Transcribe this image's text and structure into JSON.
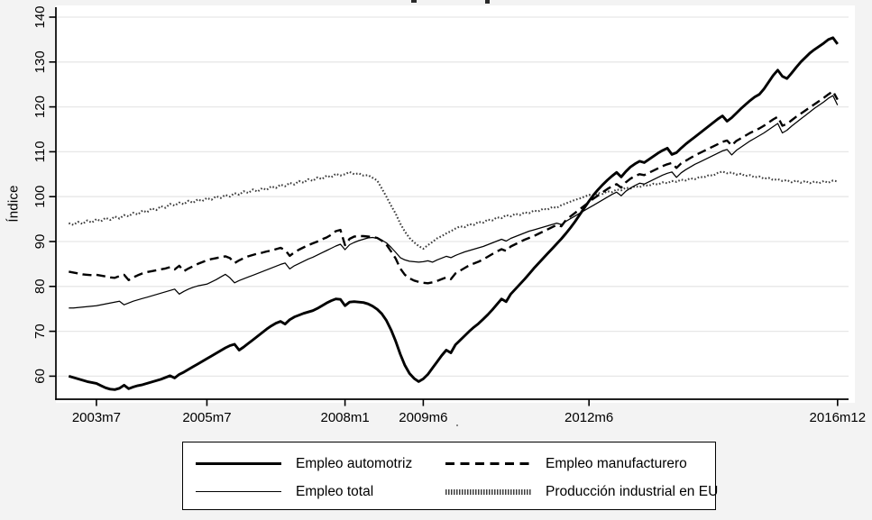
{
  "figure": {
    "y_axis_title": "Índice",
    "background": "#f3f3f3",
    "plot_background": "#ffffff",
    "grid_color": "#e7e7e7",
    "axis_color": "#000000",
    "y_ticks": [
      60,
      70,
      80,
      90,
      100,
      110,
      120,
      130,
      140
    ],
    "x_ticks": [
      {
        "label": "2003m7",
        "month_index": 6
      },
      {
        "label": "2005m7",
        "month_index": 30
      },
      {
        "label": "2008m1",
        "month_index": 60
      },
      {
        "label": "2009m6",
        "month_index": 77
      },
      {
        "label": "2012m6",
        "month_index": 113
      },
      {
        "label": "2016m12",
        "month_index": 167
      }
    ]
  },
  "chart_data": {
    "type": "line",
    "title": "",
    "xlabel": "",
    "ylabel": "Índice",
    "ylim": [
      55,
      142
    ],
    "x_start": "2003m1",
    "x_end": "2016m12",
    "x_frequency": "monthly",
    "grid": true,
    "legend_position": "bottom-box",
    "series": [
      {
        "name": "Empleo automotriz",
        "style": "solid-thick",
        "color": "#000000",
        "values": [
          60.0,
          59.7,
          59.4,
          59.1,
          58.8,
          58.6,
          58.4,
          57.9,
          57.4,
          57.1,
          57.0,
          57.3,
          58.0,
          57.2,
          57.6,
          57.9,
          58.1,
          58.4,
          58.7,
          59.0,
          59.3,
          59.7,
          60.1,
          59.6,
          60.4,
          60.9,
          61.5,
          62.1,
          62.7,
          63.3,
          63.9,
          64.5,
          65.1,
          65.7,
          66.3,
          66.8,
          67.1,
          65.8,
          66.5,
          67.3,
          68.1,
          68.9,
          69.7,
          70.5,
          71.2,
          71.8,
          72.2,
          71.6,
          72.6,
          73.2,
          73.6,
          74.0,
          74.3,
          74.6,
          75.1,
          75.7,
          76.3,
          76.8,
          77.2,
          77.1,
          75.7,
          76.5,
          76.6,
          76.5,
          76.4,
          76.1,
          75.6,
          74.9,
          73.9,
          72.4,
          70.3,
          67.8,
          64.9,
          62.4,
          60.6,
          59.5,
          58.8,
          59.4,
          60.4,
          61.8,
          63.2,
          64.6,
          65.8,
          65.2,
          67.0,
          68.0,
          69.0,
          70.0,
          70.9,
          71.7,
          72.7,
          73.7,
          74.8,
          76.0,
          77.2,
          76.6,
          78.3,
          79.4,
          80.5,
          81.6,
          82.8,
          84.0,
          85.1,
          86.2,
          87.3,
          88.4,
          89.5,
          90.6,
          91.8,
          93.1,
          94.5,
          96.0,
          97.5,
          99.0,
          100.4,
          101.6,
          102.7,
          103.7,
          104.6,
          105.4,
          104.4,
          105.6,
          106.6,
          107.3,
          107.9,
          107.6,
          108.3,
          109.0,
          109.7,
          110.3,
          110.8,
          109.4,
          109.8,
          110.8,
          111.7,
          112.5,
          113.3,
          114.1,
          114.9,
          115.7,
          116.5,
          117.3,
          118.0,
          116.8,
          117.6,
          118.6,
          119.6,
          120.5,
          121.4,
          122.2,
          122.8,
          124.0,
          125.5,
          127.0,
          128.2,
          126.8,
          126.3,
          127.5,
          128.8,
          130.0,
          131.0,
          132.0,
          132.8,
          133.5,
          134.2,
          135.0,
          135.4,
          134.0
        ]
      },
      {
        "name": "Empleo manufacturero",
        "style": "dashed",
        "color": "#000000",
        "values": [
          83.3,
          83.1,
          82.9,
          82.7,
          82.6,
          82.5,
          82.6,
          82.4,
          82.2,
          82.0,
          81.9,
          82.3,
          82.6,
          81.4,
          82.0,
          82.5,
          82.9,
          83.2,
          83.4,
          83.6,
          83.8,
          84.0,
          84.3,
          83.8,
          84.6,
          83.4,
          84.0,
          84.5,
          85.0,
          85.4,
          85.8,
          86.1,
          86.3,
          86.5,
          86.7,
          86.3,
          85.2,
          85.8,
          86.3,
          86.7,
          87.0,
          87.3,
          87.5,
          87.8,
          88.0,
          88.3,
          88.6,
          88.1,
          86.8,
          87.6,
          88.2,
          88.7,
          89.2,
          89.6,
          90.0,
          90.5,
          90.9,
          91.5,
          92.3,
          92.6,
          89.2,
          90.6,
          91.1,
          91.2,
          91.2,
          91.1,
          91.0,
          90.8,
          90.2,
          89.3,
          87.8,
          86.2,
          84.0,
          82.6,
          81.8,
          81.3,
          81.0,
          80.8,
          80.7,
          80.9,
          81.2,
          81.6,
          82.0,
          81.6,
          82.9,
          83.5,
          84.1,
          84.7,
          85.1,
          85.5,
          86.0,
          86.6,
          87.2,
          87.8,
          88.3,
          87.9,
          88.9,
          89.4,
          89.9,
          90.4,
          90.8,
          91.2,
          91.7,
          92.2,
          92.7,
          93.2,
          93.7,
          93.4,
          94.8,
          95.6,
          96.4,
          97.2,
          98.0,
          98.8,
          99.6,
          100.3,
          101.0,
          101.7,
          102.3,
          102.8,
          102.0,
          103.2,
          104.0,
          104.6,
          105.0,
          104.8,
          105.3,
          105.8,
          106.3,
          106.8,
          107.2,
          107.5,
          106.4,
          107.4,
          108.0,
          108.6,
          109.2,
          109.7,
          110.2,
          110.7,
          111.2,
          111.7,
          112.2,
          112.5,
          111.4,
          112.4,
          113.0,
          113.6,
          114.2,
          114.7,
          115.2,
          115.8,
          116.5,
          117.2,
          117.8,
          115.8,
          116.2,
          117.0,
          117.8,
          118.5,
          119.2,
          119.9,
          120.6,
          121.3,
          122.0,
          122.8,
          123.5,
          121.6
        ]
      },
      {
        "name": "Empleo total",
        "style": "solid-thin",
        "color": "#000000",
        "values": [
          75.2,
          75.2,
          75.3,
          75.4,
          75.5,
          75.6,
          75.7,
          75.9,
          76.1,
          76.3,
          76.5,
          76.7,
          75.9,
          76.3,
          76.7,
          77.0,
          77.3,
          77.6,
          77.9,
          78.2,
          78.5,
          78.8,
          79.1,
          79.4,
          78.3,
          78.9,
          79.4,
          79.8,
          80.1,
          80.3,
          80.5,
          81.0,
          81.5,
          82.1,
          82.7,
          81.9,
          80.8,
          81.3,
          81.7,
          82.1,
          82.5,
          82.9,
          83.3,
          83.7,
          84.1,
          84.5,
          84.9,
          85.2,
          83.9,
          84.6,
          85.1,
          85.6,
          86.1,
          86.5,
          87.0,
          87.5,
          88.0,
          88.5,
          89.0,
          89.4,
          88.2,
          89.3,
          89.8,
          90.2,
          90.5,
          90.8,
          90.9,
          90.7,
          90.3,
          89.7,
          88.7,
          87.6,
          86.4,
          85.9,
          85.6,
          85.5,
          85.4,
          85.5,
          85.7,
          85.4,
          85.9,
          86.3,
          86.7,
          86.4,
          86.9,
          87.3,
          87.7,
          88.0,
          88.3,
          88.6,
          88.9,
          89.3,
          89.7,
          90.1,
          90.5,
          90.1,
          90.7,
          91.1,
          91.5,
          91.9,
          92.3,
          92.6,
          92.9,
          93.2,
          93.5,
          93.8,
          94.1,
          93.8,
          94.5,
          95.1,
          95.7,
          96.3,
          96.9,
          97.5,
          98.1,
          98.7,
          99.3,
          99.9,
          100.5,
          101.0,
          100.2,
          101.2,
          101.9,
          102.5,
          103.0,
          102.8,
          103.3,
          103.8,
          104.3,
          104.8,
          105.2,
          105.5,
          104.3,
          105.3,
          106.0,
          106.6,
          107.2,
          107.7,
          108.2,
          108.7,
          109.2,
          109.7,
          110.2,
          110.5,
          109.3,
          110.3,
          111.0,
          111.7,
          112.4,
          113.0,
          113.6,
          114.2,
          114.9,
          115.6,
          116.3,
          114.2,
          114.8,
          115.7,
          116.5,
          117.3,
          118.1,
          118.9,
          119.7,
          120.4,
          121.1,
          121.9,
          122.5,
          120.4
        ]
      },
      {
        "name": "Producción industrial en EU",
        "style": "dotted",
        "color": "#3d3d3d",
        "values": [
          94.1,
          93.7,
          94.4,
          93.9,
          94.7,
          94.2,
          95.0,
          94.5,
          95.3,
          94.8,
          95.6,
          95.1,
          95.9,
          95.6,
          96.4,
          96.0,
          96.9,
          96.5,
          97.4,
          97.0,
          97.9,
          97.5,
          98.4,
          98.0,
          98.7,
          98.3,
          99.1,
          98.6,
          99.4,
          99.0,
          99.7,
          99.3,
          100.1,
          99.7,
          100.4,
          100.0,
          100.8,
          100.4,
          101.2,
          100.8,
          101.6,
          101.1,
          101.9,
          101.5,
          102.3,
          101.9,
          102.7,
          102.3,
          103.1,
          102.7,
          103.5,
          103.1,
          103.9,
          103.5,
          104.3,
          103.9,
          104.7,
          104.3,
          105.1,
          104.7,
          105.0,
          105.5,
          105.0,
          105.2,
          104.7,
          104.8,
          104.2,
          103.6,
          101.8,
          100.0,
          98.0,
          96.2,
          94.0,
          92.2,
          90.8,
          89.8,
          89.0,
          88.4,
          89.2,
          89.9,
          90.7,
          91.2,
          91.8,
          92.3,
          92.9,
          93.4,
          93.2,
          93.9,
          93.7,
          94.4,
          94.2,
          94.9,
          94.7,
          95.4,
          95.2,
          95.9,
          95.6,
          96.2,
          95.9,
          96.5,
          96.3,
          96.9,
          96.7,
          97.3,
          97.1,
          97.7,
          97.5,
          98.1,
          98.5,
          98.9,
          99.3,
          99.6,
          100.0,
          100.4,
          100.2,
          100.8,
          100.6,
          101.2,
          101.0,
          101.6,
          101.4,
          102.0,
          101.8,
          102.3,
          102.1,
          102.6,
          102.4,
          102.9,
          102.7,
          103.2,
          103.0,
          103.5,
          103.3,
          103.8,
          103.6,
          104.1,
          103.9,
          104.4,
          104.3,
          104.8,
          104.7,
          105.3,
          105.6,
          105.2,
          105.4,
          104.9,
          105.1,
          104.6,
          104.8,
          104.3,
          104.5,
          104.0,
          104.2,
          103.7,
          103.9,
          103.5,
          103.7,
          103.2,
          103.6,
          103.1,
          103.5,
          103.0,
          103.4,
          103.0,
          103.5,
          103.1,
          103.6,
          103.4
        ]
      }
    ]
  },
  "legend": {
    "rows": [
      [
        "Empleo automotriz",
        "Empleo manufacturero"
      ],
      [
        "Empleo total",
        "Producción industrial en EU"
      ]
    ]
  }
}
